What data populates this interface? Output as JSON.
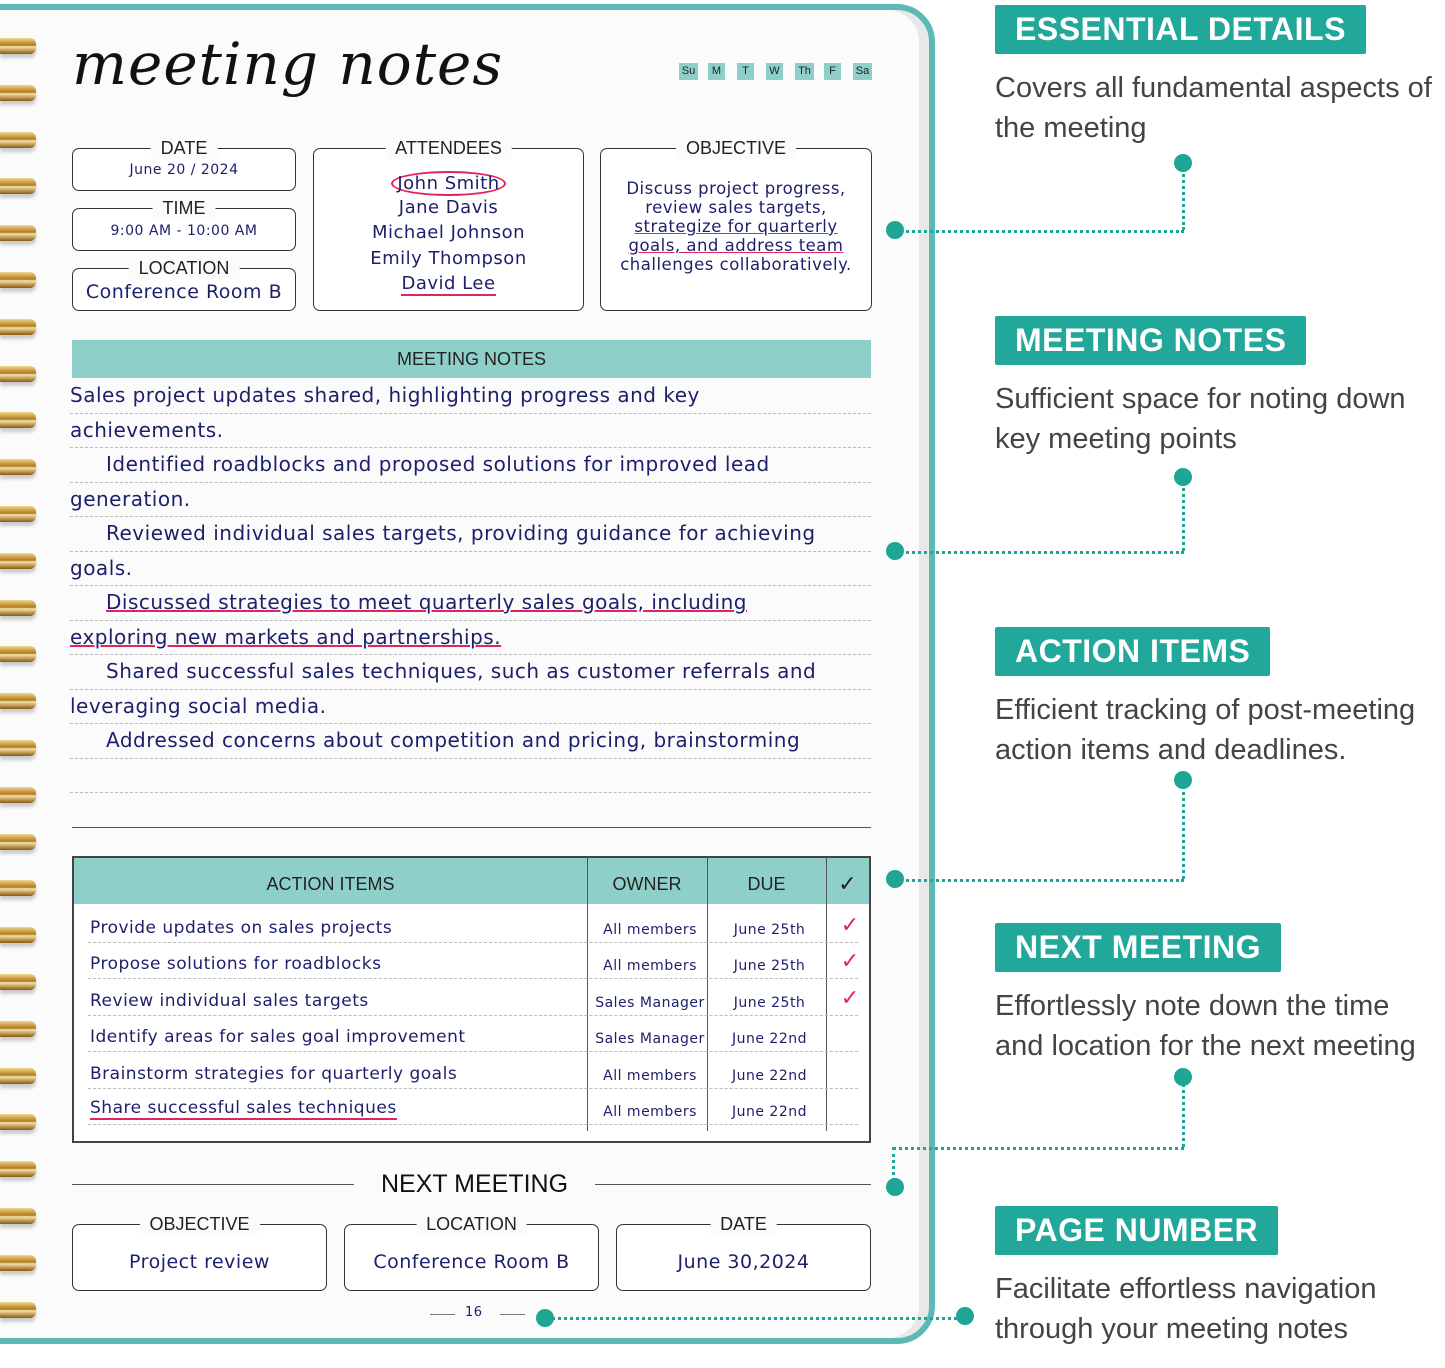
{
  "page": {
    "title": "meeting notes",
    "days": [
      "Su",
      "M",
      "T",
      "W",
      "Th",
      "F",
      "Sa"
    ],
    "date": {
      "label": "DATE",
      "value": "June 20 / 2024"
    },
    "time": {
      "label": "TIME",
      "value": "9:00 AM - 10:00 AM"
    },
    "location": {
      "label": "LOCATION",
      "value": "Conference Room B"
    },
    "attendees": {
      "label": "ATTENDEES",
      "names": [
        "John Smith",
        "Jane Davis",
        "Michael Johnson",
        "Emily Thompson",
        "David Lee"
      ]
    },
    "objective": {
      "label": "OBJECTIVE",
      "lines": [
        "Discuss project progress,",
        "review sales targets,",
        "strategize for quarterly",
        "goals, and address team",
        "challenges collaboratively."
      ]
    },
    "notes": {
      "label": "MEETING NOTES",
      "lines": [
        "Sales project updates shared, highlighting progress and key",
        "achievements.",
        "Identified roadblocks and proposed solutions for improved lead",
        "generation.",
        "Reviewed individual sales targets, providing guidance for achieving",
        "goals.",
        "Discussed strategies to meet quarterly sales goals, including",
        "exploring new markets and partnerships.",
        "Shared successful sales techniques, such as customer referrals and",
        "leveraging social media.",
        "Addressed concerns about competition and pricing, brainstorming",
        ""
      ]
    },
    "actions": {
      "headers": [
        "ACTION ITEMS",
        "OWNER",
        "DUE",
        "✓"
      ],
      "rows": [
        {
          "item": "Provide updates on sales projects",
          "owner": "All members",
          "due": "June 25th",
          "done": "✓"
        },
        {
          "item": "Propose solutions for roadblocks",
          "owner": "All members",
          "due": "June 25th",
          "done": "✓"
        },
        {
          "item": "Review individual sales targets",
          "owner": "Sales Manager",
          "due": "June 25th",
          "done": "✓"
        },
        {
          "item": "Identify areas for sales goal improvement",
          "owner": "Sales Manager",
          "due": "June 22nd",
          "done": ""
        },
        {
          "item": "Brainstorm strategies for quarterly goals",
          "owner": "All members",
          "due": "June 22nd",
          "done": ""
        },
        {
          "item": "Share successful sales techniques",
          "owner": "All members",
          "due": "June 22nd",
          "done": ""
        }
      ]
    },
    "next_meeting": {
      "label": "NEXT MEETING",
      "objective": {
        "label": "OBJECTIVE",
        "value": "Project review"
      },
      "location": {
        "label": "LOCATION",
        "value": "Conference Room B"
      },
      "date": {
        "label": "DATE",
        "value": "June 30,2024"
      }
    },
    "page_number": "16"
  },
  "features": [
    {
      "title": "ESSENTIAL DETAILS",
      "desc": "Covers all fundamental aspects of the meeting"
    },
    {
      "title": "MEETING NOTES",
      "desc": "Sufficient space for noting down key meeting points"
    },
    {
      "title": "ACTION ITEMS",
      "desc": "Efficient tracking of post-meeting action items and deadlines."
    },
    {
      "title": "NEXT MEETING",
      "desc": "Effortlessly note down the time and location for the next meeting"
    },
    {
      "title": "PAGE NUMBER",
      "desc": "Facilitate effortless navigation through your meeting notes"
    }
  ],
  "colors": {
    "accent": "#22a89a",
    "header_fill": "#8fcfca",
    "ink": "#1c1f6b",
    "highlight": "#e0245e"
  }
}
